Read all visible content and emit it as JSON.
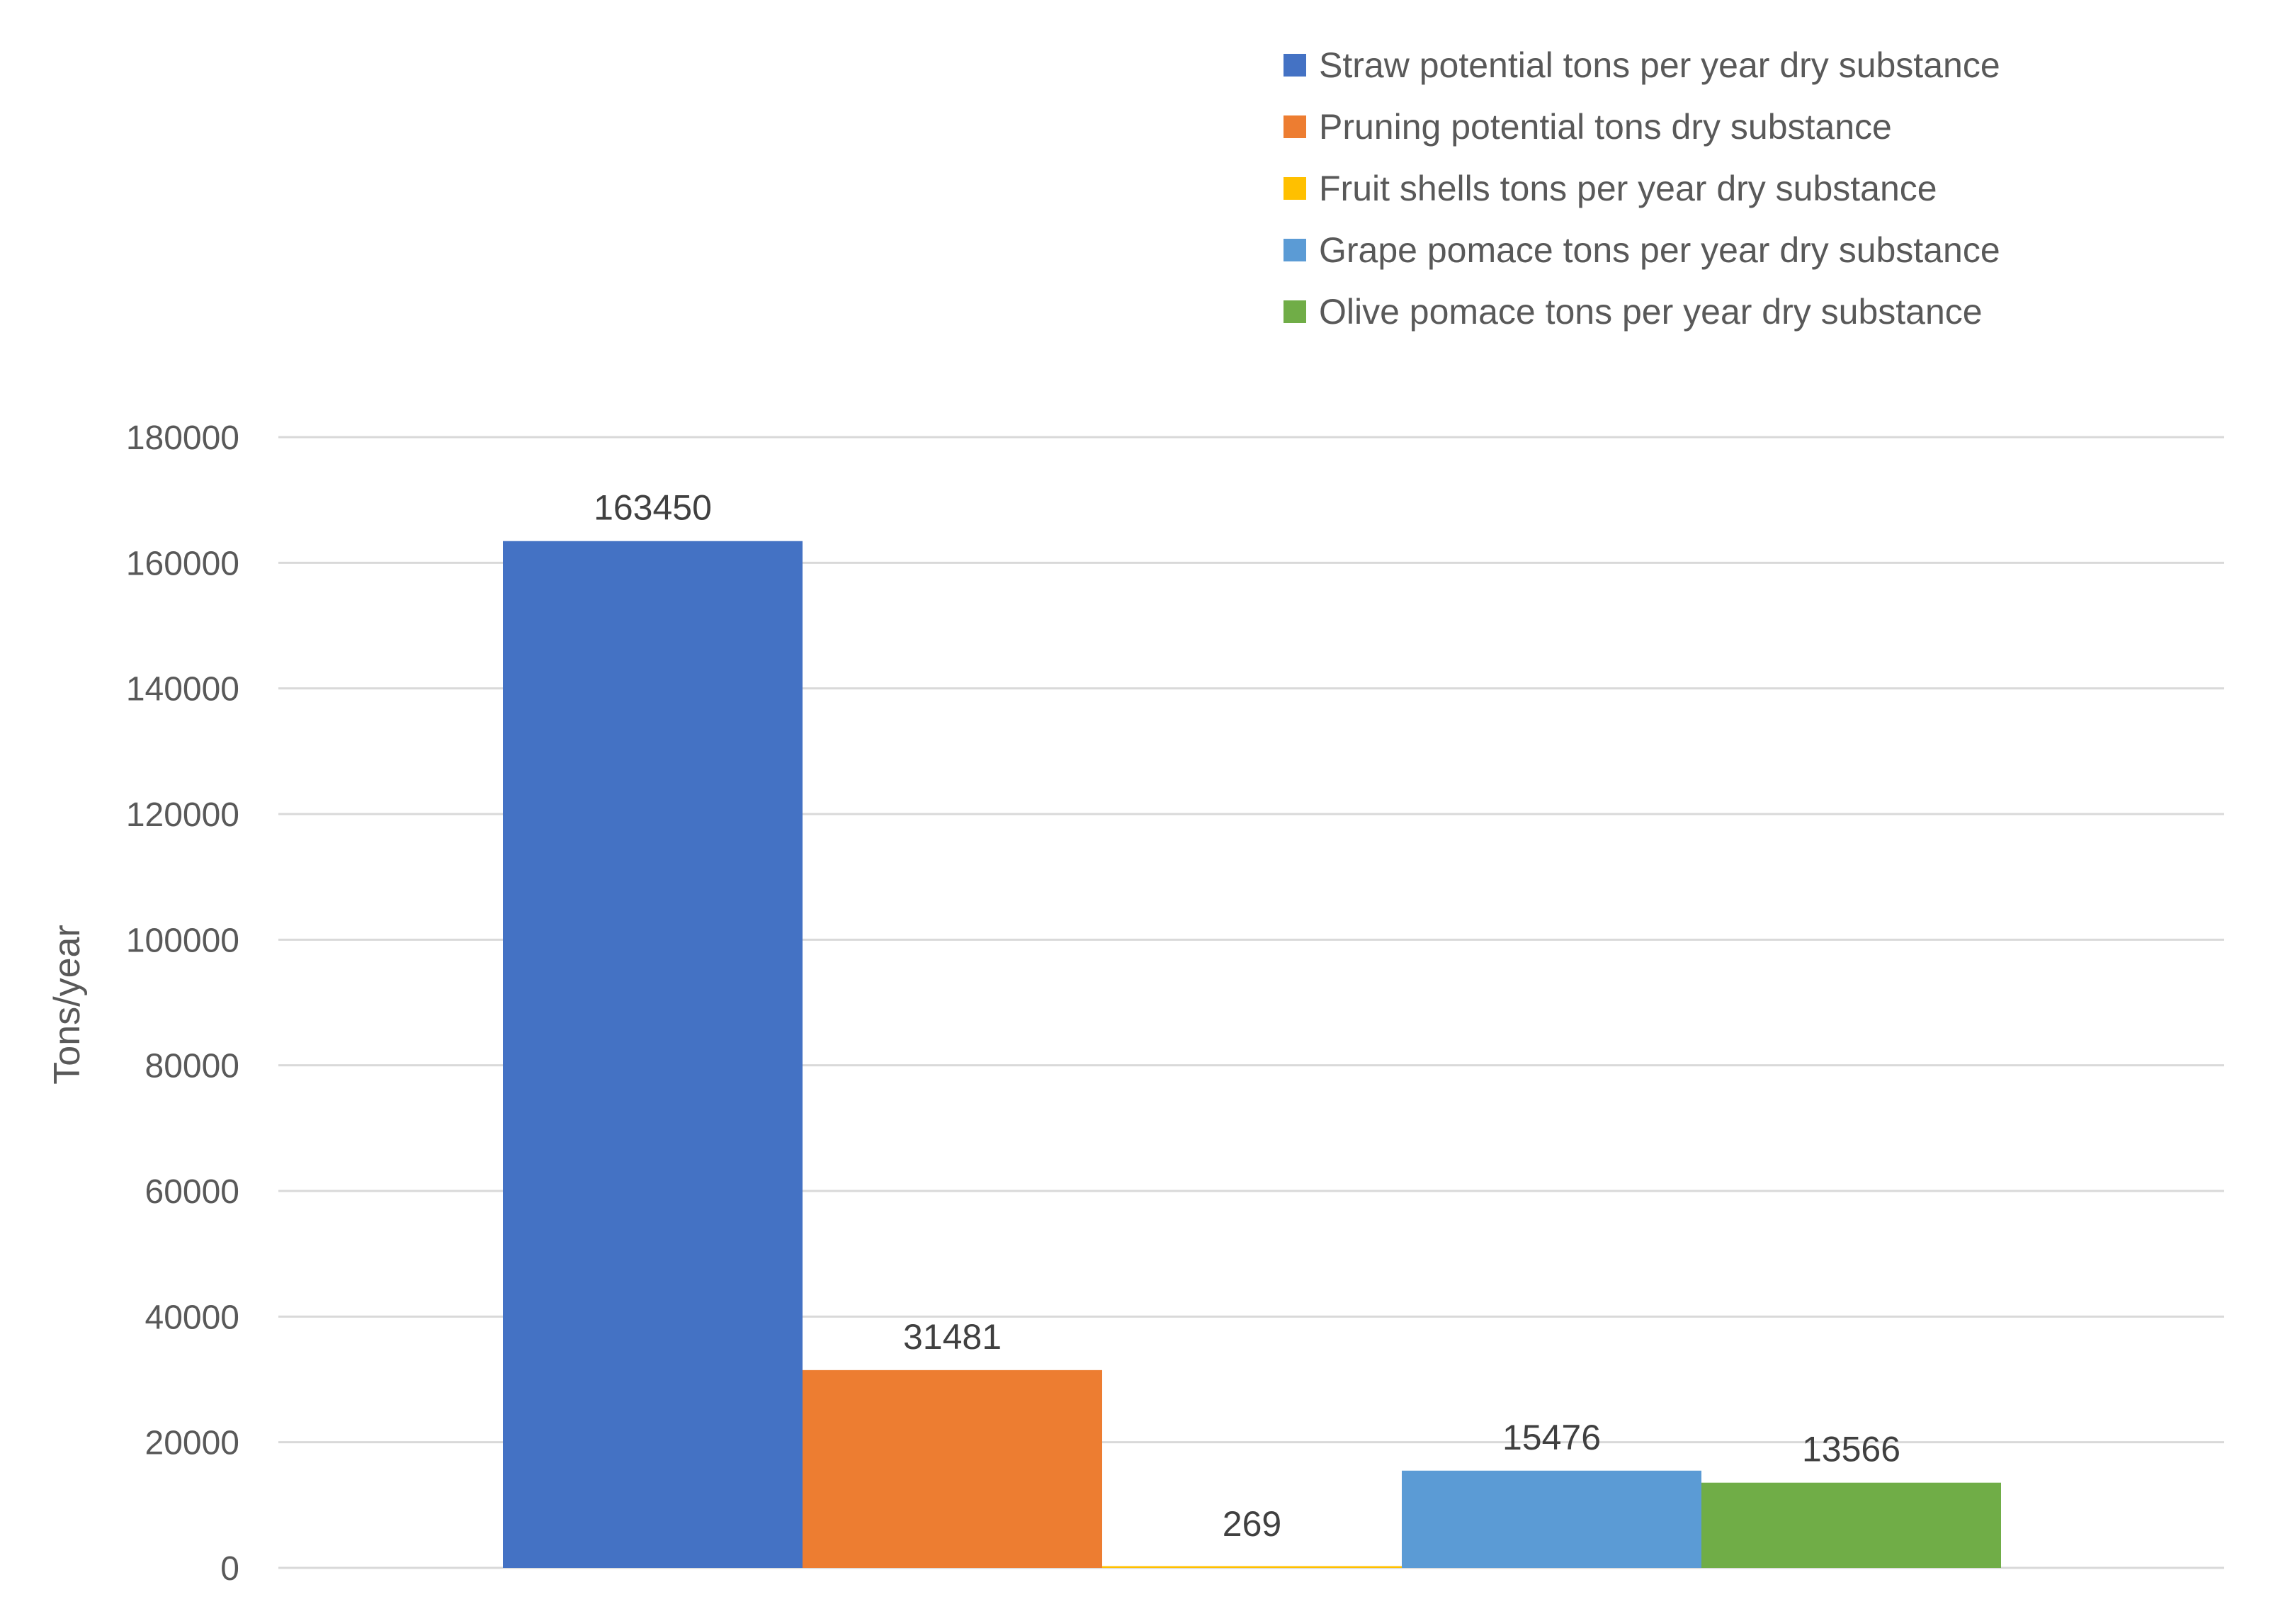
{
  "chart_data": {
    "type": "bar",
    "title": "",
    "xlabel": "",
    "ylabel": "Tons/year",
    "ylim": [
      0,
      180000
    ],
    "yticks": [
      0,
      20000,
      40000,
      60000,
      80000,
      100000,
      120000,
      140000,
      160000,
      180000
    ],
    "grid": true,
    "legend_position": "top-right",
    "categories": [
      ""
    ],
    "series": [
      {
        "name": "Straw potential tons per year dry substance",
        "values": [
          163450
        ],
        "color": "#4472C4"
      },
      {
        "name": "Pruning potential tons dry substance",
        "values": [
          31481
        ],
        "color": "#ED7D31"
      },
      {
        "name": "Fruit shells tons per year dry substance",
        "values": [
          269
        ],
        "color": "#FFC000"
      },
      {
        "name": "Grape pomace tons per year dry substance",
        "values": [
          15476
        ],
        "color": "#5B9BD5"
      },
      {
        "name": "Olive pomace tons per year dry substance",
        "values": [
          13566
        ],
        "color": "#70AD47"
      }
    ]
  }
}
